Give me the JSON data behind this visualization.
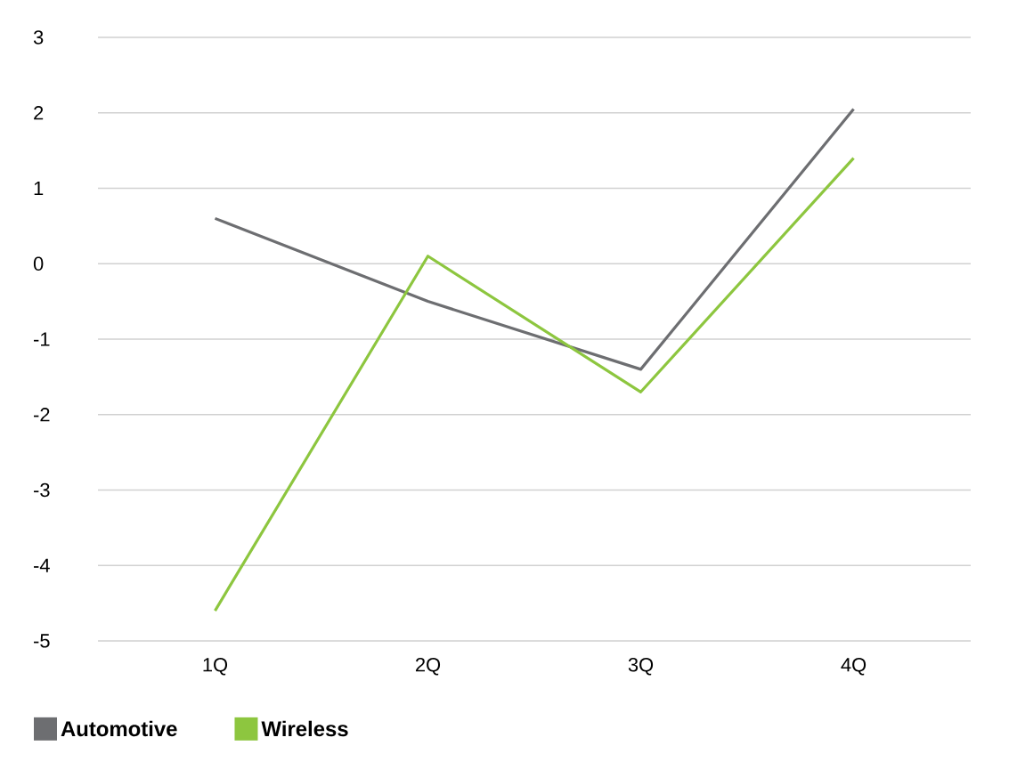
{
  "chart_data": {
    "type": "line",
    "categories": [
      "1Q",
      "2Q",
      "3Q",
      "4Q"
    ],
    "series": [
      {
        "name": "Automotive",
        "color": "#6d6e71",
        "values": [
          0.6,
          -0.5,
          -1.4,
          2.05
        ]
      },
      {
        "name": "Wireless",
        "color": "#8dc63f",
        "values": [
          -4.6,
          0.1,
          -1.7,
          1.4
        ]
      }
    ],
    "ylim": [
      -5,
      3
    ],
    "yticks": [
      -5,
      -4,
      -3,
      -2,
      -1,
      0,
      1,
      2,
      3
    ],
    "grid": "y",
    "legend": "bottom left",
    "marker": "none",
    "line_style": "solid"
  }
}
